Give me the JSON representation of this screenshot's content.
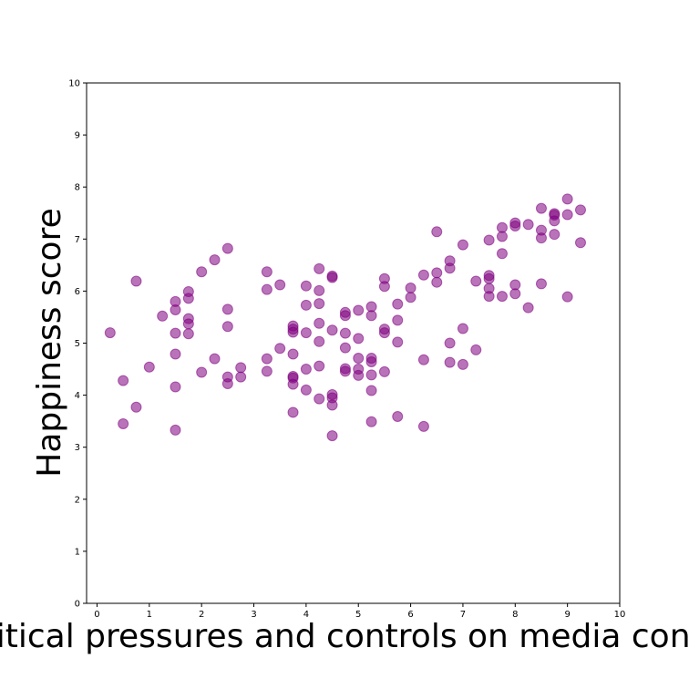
{
  "chart_data": {
    "type": "scatter",
    "title": "",
    "xlabel": "Political pressures and controls on media content",
    "ylabel": "Happiness score",
    "xlim": [
      -0.2,
      10
    ],
    "ylim": [
      0,
      10
    ],
    "xticks": [
      0,
      1,
      2,
      3,
      4,
      5,
      6,
      7,
      8,
      9,
      10
    ],
    "yticks": [
      0,
      1,
      2,
      3,
      4,
      5,
      6,
      7,
      8,
      9,
      10
    ],
    "grid": false,
    "color": "#800080",
    "points": [
      [
        0.25,
        5.2
      ],
      [
        0.5,
        4.28
      ],
      [
        0.5,
        3.45
      ],
      [
        0.75,
        6.19
      ],
      [
        0.75,
        3.77
      ],
      [
        1.0,
        4.54
      ],
      [
        1.25,
        5.52
      ],
      [
        1.5,
        5.8
      ],
      [
        1.5,
        5.64
      ],
      [
        1.5,
        5.19
      ],
      [
        1.5,
        4.79
      ],
      [
        1.5,
        4.16
      ],
      [
        1.5,
        3.33
      ],
      [
        1.75,
        5.99
      ],
      [
        1.75,
        5.86
      ],
      [
        1.75,
        5.47
      ],
      [
        1.75,
        5.37
      ],
      [
        1.75,
        5.18
      ],
      [
        2.0,
        6.37
      ],
      [
        2.0,
        4.44
      ],
      [
        2.25,
        6.6
      ],
      [
        2.25,
        4.7
      ],
      [
        2.5,
        6.82
      ],
      [
        2.5,
        5.65
      ],
      [
        2.5,
        5.32
      ],
      [
        2.5,
        4.35
      ],
      [
        2.5,
        4.22
      ],
      [
        2.75,
        4.53
      ],
      [
        2.75,
        4.35
      ],
      [
        3.25,
        6.37
      ],
      [
        3.25,
        6.03
      ],
      [
        3.25,
        4.7
      ],
      [
        3.25,
        4.46
      ],
      [
        3.5,
        6.12
      ],
      [
        3.5,
        4.9
      ],
      [
        3.75,
        5.33
      ],
      [
        3.75,
        5.27
      ],
      [
        3.75,
        5.21
      ],
      [
        3.75,
        4.79
      ],
      [
        3.75,
        4.36
      ],
      [
        3.75,
        4.33
      ],
      [
        3.75,
        4.21
      ],
      [
        3.75,
        3.67
      ],
      [
        4.0,
        6.1
      ],
      [
        4.0,
        5.73
      ],
      [
        4.0,
        5.2
      ],
      [
        4.0,
        4.5
      ],
      [
        4.0,
        4.1
      ],
      [
        4.25,
        6.43
      ],
      [
        4.25,
        6.01
      ],
      [
        4.25,
        5.76
      ],
      [
        4.25,
        5.38
      ],
      [
        4.25,
        5.03
      ],
      [
        4.25,
        4.56
      ],
      [
        4.25,
        3.93
      ],
      [
        4.5,
        6.29
      ],
      [
        4.5,
        6.26
      ],
      [
        4.5,
        5.25
      ],
      [
        4.5,
        4.01
      ],
      [
        4.5,
        3.95
      ],
      [
        4.5,
        3.81
      ],
      [
        4.5,
        3.22
      ],
      [
        4.75,
        5.59
      ],
      [
        4.75,
        5.53
      ],
      [
        4.75,
        5.19
      ],
      [
        4.75,
        4.91
      ],
      [
        4.75,
        4.51
      ],
      [
        4.75,
        4.46
      ],
      [
        5.0,
        5.63
      ],
      [
        5.0,
        5.09
      ],
      [
        5.0,
        4.71
      ],
      [
        5.0,
        4.5
      ],
      [
        5.0,
        4.38
      ],
      [
        5.25,
        5.7
      ],
      [
        5.25,
        5.53
      ],
      [
        5.25,
        4.71
      ],
      [
        5.25,
        4.64
      ],
      [
        5.25,
        4.39
      ],
      [
        5.25,
        4.09
      ],
      [
        5.25,
        3.49
      ],
      [
        5.5,
        6.24
      ],
      [
        5.5,
        6.09
      ],
      [
        5.5,
        5.27
      ],
      [
        5.5,
        5.2
      ],
      [
        5.5,
        4.45
      ],
      [
        5.75,
        5.75
      ],
      [
        5.75,
        5.44
      ],
      [
        5.75,
        5.02
      ],
      [
        5.75,
        3.59
      ],
      [
        6.0,
        6.06
      ],
      [
        6.0,
        5.88
      ],
      [
        6.25,
        6.31
      ],
      [
        6.25,
        4.68
      ],
      [
        6.25,
        3.4
      ],
      [
        6.5,
        7.14
      ],
      [
        6.5,
        6.35
      ],
      [
        6.5,
        6.17
      ],
      [
        6.75,
        6.58
      ],
      [
        6.75,
        6.44
      ],
      [
        6.75,
        5.0
      ],
      [
        6.75,
        4.63
      ],
      [
        7.0,
        6.89
      ],
      [
        7.0,
        5.28
      ],
      [
        7.0,
        4.59
      ],
      [
        7.25,
        6.19
      ],
      [
        7.25,
        4.87
      ],
      [
        7.5,
        6.98
      ],
      [
        7.5,
        6.3
      ],
      [
        7.5,
        6.24
      ],
      [
        7.5,
        6.05
      ],
      [
        7.5,
        5.9
      ],
      [
        7.75,
        7.22
      ],
      [
        7.75,
        7.05
      ],
      [
        7.75,
        6.72
      ],
      [
        7.75,
        5.9
      ],
      [
        8.0,
        7.31
      ],
      [
        8.0,
        7.25
      ],
      [
        8.0,
        6.12
      ],
      [
        8.0,
        5.95
      ],
      [
        8.25,
        7.28
      ],
      [
        8.25,
        5.68
      ],
      [
        8.5,
        7.59
      ],
      [
        8.5,
        7.17
      ],
      [
        8.5,
        7.02
      ],
      [
        8.5,
        6.14
      ],
      [
        8.75,
        7.49
      ],
      [
        8.75,
        7.46
      ],
      [
        8.75,
        7.35
      ],
      [
        8.75,
        7.09
      ],
      [
        9.0,
        7.77
      ],
      [
        9.0,
        7.47
      ],
      [
        9.0,
        5.89
      ],
      [
        9.25,
        7.56
      ],
      [
        9.25,
        6.93
      ]
    ]
  }
}
